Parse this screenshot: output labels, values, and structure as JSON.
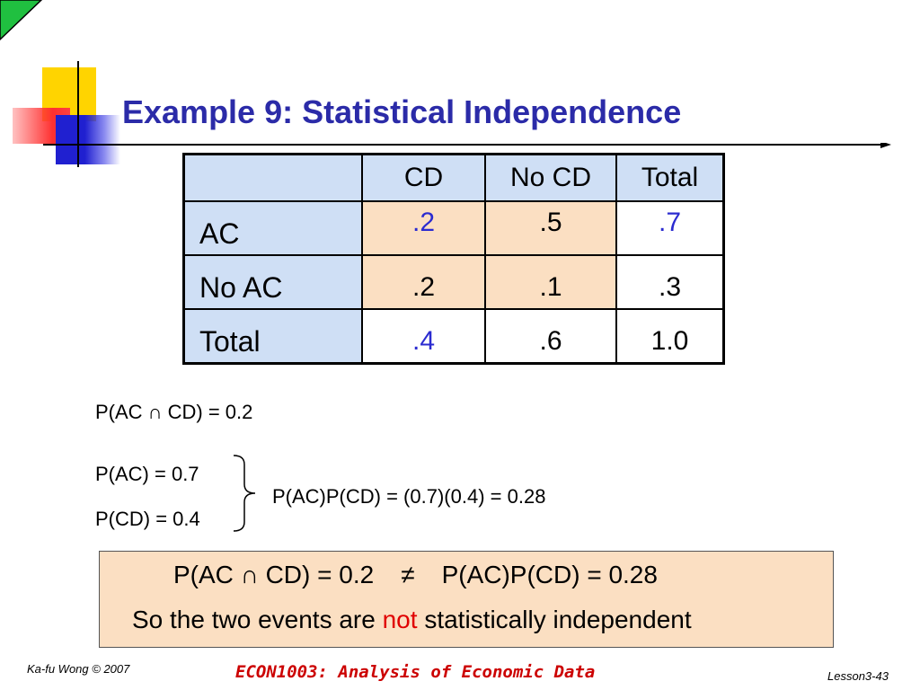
{
  "slide": {
    "title": "Example 9: Statistical Independence"
  },
  "table": {
    "header": [
      "",
      "CD",
      "No CD",
      "Total"
    ],
    "rows": [
      {
        "label": "AC",
        "cd": ".2",
        "no_cd": ".5",
        "total": ".7"
      },
      {
        "label": "No AC",
        "cd": ".2",
        "no_cd": ".1",
        "total": ".3"
      },
      {
        "label": "Total",
        "cd": ".4",
        "no_cd": ".6",
        "total": "1.0"
      }
    ]
  },
  "equations": {
    "joint": "P(AC ∩ CD) = 0.2",
    "p_ac": "P(AC) = 0.7",
    "p_cd": "P(CD) = 0.4",
    "product": "P(AC)P(CD) = (0.7)(0.4) = 0.28"
  },
  "conclusion": {
    "left": "P(AC ∩ CD) = 0.2",
    "operator": "≠",
    "right": "P(AC)P(CD) = 0.28",
    "sentence_before": "So the two events are ",
    "sentence_highlight": "not",
    "sentence_after": " statistically independent"
  },
  "footer": {
    "author": "Ka-fu Wong © 2007",
    "course": "ECON1003: Analysis of Economic Data",
    "page": "Lesson3-43"
  },
  "colors": {
    "title": "#2b2ba8",
    "header_fill": "#cfdff5",
    "cell_fill": "#fbdfc2",
    "highlight_blue": "#2b2bd0",
    "highlight_red": "#e00000",
    "footer_course": "#cc0000"
  }
}
